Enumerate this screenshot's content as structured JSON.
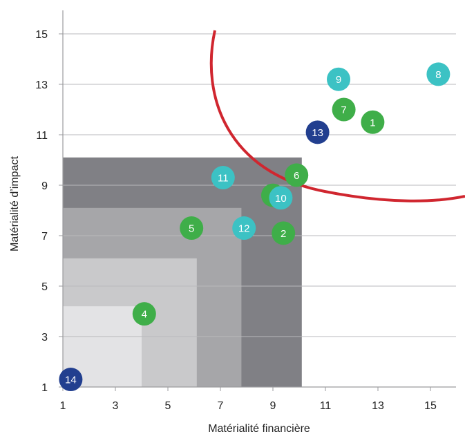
{
  "chart_data": {
    "type": "scatter",
    "title": "",
    "xlabel": "Matérialité financière",
    "ylabel": "Matérialité d’impact",
    "xlim": [
      1,
      16
    ],
    "ylim": [
      1,
      16
    ],
    "x_ticks": [
      "1",
      "3",
      "5",
      "7",
      "9",
      "11",
      "13",
      "15"
    ],
    "y_ticks": [
      "1",
      "3",
      "5",
      "7",
      "9",
      "11",
      "13",
      "15"
    ],
    "grid": "horizontal",
    "zones": [
      {
        "x_max": 10.1,
        "y_max": 10.1,
        "color": "#808085"
      },
      {
        "x_max": 7.8,
        "y_max": 8.1,
        "color": "#a6a6a9"
      },
      {
        "x_max": 6.1,
        "y_max": 6.1,
        "color": "#c9c9cb"
      },
      {
        "x_max": 4.0,
        "y_max": 4.2,
        "color": "#e3e3e5"
      }
    ],
    "threshold_curve_color": "#d0262f",
    "points": [
      {
        "label": "1",
        "x": 12.8,
        "y": 11.5,
        "color": "#3fae49"
      },
      {
        "label": "2",
        "x": 9.4,
        "y": 7.1,
        "color": "#3fae49"
      },
      {
        "label": "3",
        "x": 9.0,
        "y": 8.6,
        "color": "#3fae49"
      },
      {
        "label": "4",
        "x": 4.1,
        "y": 3.9,
        "color": "#3fae49"
      },
      {
        "label": "5",
        "x": 5.9,
        "y": 7.3,
        "color": "#3fae49"
      },
      {
        "label": "6",
        "x": 9.9,
        "y": 9.4,
        "color": "#3fae49"
      },
      {
        "label": "7",
        "x": 11.7,
        "y": 12.0,
        "color": "#3fae49"
      },
      {
        "label": "8",
        "x": 15.3,
        "y": 13.4,
        "color": "#3cc2c4"
      },
      {
        "label": "9",
        "x": 11.5,
        "y": 13.2,
        "color": "#3cc2c4"
      },
      {
        "label": "10",
        "x": 9.3,
        "y": 8.5,
        "color": "#3cc2c4"
      },
      {
        "label": "11",
        "x": 7.1,
        "y": 9.3,
        "color": "#3cc2c4"
      },
      {
        "label": "12",
        "x": 7.9,
        "y": 7.3,
        "color": "#3cc2c4"
      },
      {
        "label": "13",
        "x": 10.7,
        "y": 11.1,
        "color": "#223f8f"
      },
      {
        "label": "14",
        "x": 1.3,
        "y": 1.3,
        "color": "#223f8f"
      }
    ]
  }
}
